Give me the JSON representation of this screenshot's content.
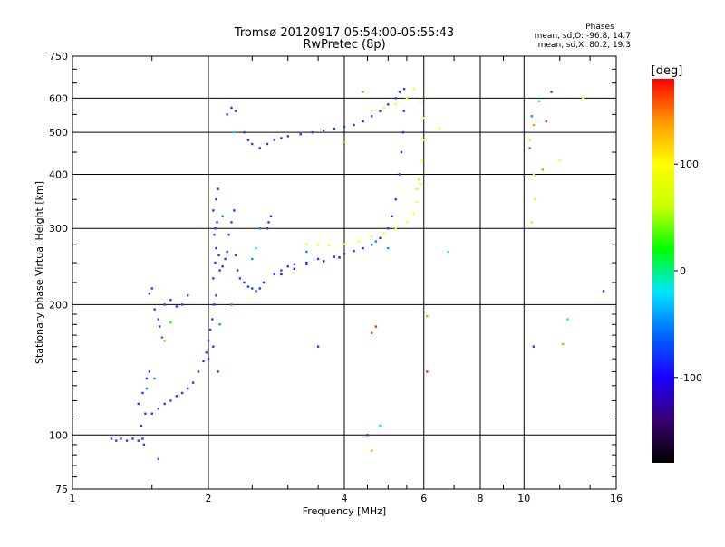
{
  "chart_data": {
    "type": "scatter",
    "title": "Tromsø 20120917 05:54:00-05:55:43",
    "subtitle": "RwPretec (8p)",
    "xlabel": "Frequency [MHz]",
    "ylabel": "Stationary phase Virtual Height [km]",
    "x_scale": "log",
    "y_scale": "log",
    "xlim": [
      1,
      16
    ],
    "ylim": [
      75,
      750
    ],
    "x_ticks": [
      1,
      2,
      4,
      6,
      8,
      10,
      16
    ],
    "y_ticks": [
      75,
      100,
      200,
      300,
      400,
      500,
      600,
      750
    ],
    "grid": true,
    "stats": {
      "heading": "Phases",
      "line_o": "mean, sd,O: -96.8, 14.7",
      "line_x": "mean, sd,X: 80.2, 19.3"
    },
    "colorbar": {
      "title": "[deg]",
      "ticks": [
        100,
        0,
        -100
      ],
      "range": [
        -180,
        180
      ],
      "colors": [
        "#000000",
        "#3a0070",
        "#1a00ff",
        "#0066ff",
        "#00e5ff",
        "#00ff00",
        "#c8ff00",
        "#ffff00",
        "#ff9900",
        "#ff0000"
      ]
    },
    "series": [
      {
        "color": "#1f3cff",
        "points": [
          [
            1.22,
            98
          ],
          [
            1.25,
            97
          ],
          [
            1.28,
            98
          ],
          [
            1.32,
            97
          ],
          [
            1.36,
            98
          ],
          [
            1.4,
            97
          ],
          [
            1.43,
            98
          ],
          [
            1.42,
            105
          ],
          [
            1.44,
            95
          ],
          [
            1.48,
            212
          ],
          [
            1.5,
            218
          ],
          [
            1.52,
            195
          ],
          [
            1.55,
            185
          ],
          [
            1.56,
            178
          ],
          [
            1.6,
            200
          ],
          [
            1.65,
            205
          ],
          [
            1.7,
            198
          ],
          [
            1.75,
            200
          ],
          [
            1.8,
            210
          ],
          [
            1.4,
            118
          ],
          [
            1.43,
            125
          ],
          [
            1.46,
            135
          ],
          [
            1.48,
            140
          ],
          [
            1.45,
            112
          ],
          [
            1.5,
            112
          ],
          [
            1.55,
            115
          ],
          [
            1.6,
            118
          ],
          [
            1.65,
            120
          ],
          [
            1.7,
            123
          ],
          [
            1.75,
            125
          ],
          [
            1.8,
            128
          ],
          [
            1.85,
            132
          ],
          [
            1.9,
            140
          ],
          [
            1.95,
            148
          ],
          [
            1.98,
            155
          ],
          [
            2.0,
            165
          ],
          [
            2.02,
            175
          ],
          [
            2.04,
            185
          ],
          [
            2.06,
            200
          ],
          [
            2.08,
            210
          ],
          [
            2.05,
            230
          ],
          [
            2.07,
            250
          ],
          [
            2.08,
            270
          ],
          [
            2.06,
            290
          ],
          [
            2.09,
            310
          ],
          [
            2.05,
            330
          ],
          [
            2.08,
            350
          ],
          [
            2.1,
            370
          ],
          [
            2.07,
            300
          ],
          [
            2.11,
            260
          ],
          [
            2.12,
            240
          ],
          [
            2.15,
            245
          ],
          [
            2.18,
            255
          ],
          [
            2.2,
            265
          ],
          [
            2.22,
            290
          ],
          [
            2.25,
            310
          ],
          [
            2.28,
            330
          ],
          [
            2.3,
            260
          ],
          [
            2.32,
            240
          ],
          [
            2.35,
            230
          ],
          [
            2.4,
            225
          ],
          [
            2.45,
            220
          ],
          [
            2.5,
            218
          ],
          [
            2.55,
            215
          ],
          [
            2.6,
            218
          ],
          [
            2.65,
            225
          ],
          [
            2.7,
            300
          ],
          [
            2.72,
            310
          ],
          [
            2.75,
            320
          ],
          [
            2.8,
            235
          ],
          [
            2.9,
            240
          ],
          [
            3.0,
            245
          ],
          [
            3.1,
            248
          ],
          [
            3.3,
            250
          ],
          [
            3.5,
            255
          ],
          [
            3.8,
            258
          ],
          [
            4.0,
            262
          ],
          [
            4.2,
            266
          ],
          [
            4.4,
            270
          ],
          [
            4.6,
            275
          ],
          [
            4.8,
            285
          ],
          [
            5.0,
            300
          ],
          [
            5.1,
            320
          ],
          [
            5.2,
            350
          ],
          [
            5.3,
            400
          ],
          [
            5.35,
            450
          ],
          [
            5.4,
            500
          ],
          [
            5.42,
            560
          ],
          [
            5.43,
            630
          ],
          [
            2.2,
            550
          ],
          [
            2.25,
            570
          ],
          [
            2.3,
            560
          ],
          [
            2.4,
            500
          ],
          [
            2.45,
            480
          ],
          [
            2.5,
            470
          ],
          [
            2.6,
            460
          ],
          [
            2.7,
            470
          ],
          [
            2.8,
            480
          ],
          [
            2.9,
            485
          ],
          [
            3.0,
            490
          ],
          [
            3.2,
            495
          ],
          [
            3.4,
            500
          ],
          [
            3.6,
            505
          ],
          [
            3.8,
            510
          ],
          [
            4.0,
            515
          ],
          [
            4.2,
            520
          ],
          [
            4.4,
            530
          ],
          [
            4.6,
            545
          ],
          [
            4.8,
            560
          ],
          [
            5.0,
            580
          ],
          [
            5.2,
            600
          ],
          [
            5.3,
            620
          ],
          [
            2.1,
            140
          ],
          [
            2.0,
            150
          ],
          [
            2.05,
            160
          ],
          [
            1.55,
            88
          ],
          [
            4.5,
            100
          ],
          [
            10.5,
            160
          ],
          [
            11.5,
            620
          ],
          [
            15,
            215
          ],
          [
            3.5,
            160
          ]
        ]
      },
      {
        "color": "#0a8cff",
        "points": [
          [
            1.58,
            168
          ],
          [
            1.52,
            135
          ],
          [
            1.46,
            128
          ],
          [
            2.12,
            180
          ],
          [
            2.25,
            200
          ],
          [
            2.6,
            300
          ],
          [
            3.3,
            265
          ],
          [
            4.7,
            280
          ],
          [
            5.0,
            270
          ],
          [
            10.3,
            460
          ],
          [
            10.4,
            545
          ],
          [
            2.5,
            255
          ],
          [
            2.15,
            320
          ]
        ]
      },
      {
        "color": "#00e5ff",
        "points": [
          [
            2.55,
            270
          ],
          [
            2.28,
            500
          ],
          [
            10.8,
            590
          ],
          [
            12.5,
            185
          ],
          [
            4.8,
            105
          ],
          [
            6.8,
            265
          ]
        ]
      },
      {
        "color": "#4a00d0",
        "points": [
          [
            2.9,
            235
          ],
          [
            3.1,
            242
          ],
          [
            3.3,
            248
          ],
          [
            3.6,
            252
          ],
          [
            3.9,
            257
          ]
        ]
      },
      {
        "color": "#00ff00",
        "points": [
          [
            1.65,
            182
          ]
        ]
      },
      {
        "color": "#ffff00",
        "points": [
          [
            3.3,
            276
          ],
          [
            3.5,
            275
          ],
          [
            3.7,
            274
          ],
          [
            4.0,
            276
          ],
          [
            4.3,
            280
          ],
          [
            4.6,
            287
          ],
          [
            4.9,
            292
          ],
          [
            5.2,
            300
          ],
          [
            5.5,
            310
          ],
          [
            5.7,
            325
          ],
          [
            5.8,
            345
          ],
          [
            5.9,
            380
          ],
          [
            5.95,
            430
          ],
          [
            6.0,
            480
          ],
          [
            6.0,
            540
          ],
          [
            5.9,
            590
          ],
          [
            5.7,
            630
          ],
          [
            5.5,
            600
          ],
          [
            5.2,
            580
          ],
          [
            4.9,
            570
          ],
          [
            4.6,
            560
          ],
          [
            6.5,
            510
          ],
          [
            13.5,
            600
          ],
          [
            12.0,
            430
          ]
        ]
      },
      {
        "color": "#c8ff00",
        "points": [
          [
            5.8,
            370
          ],
          [
            5.85,
            390
          ],
          [
            10.4,
            310
          ],
          [
            10.6,
            350
          ],
          [
            10.5,
            400
          ],
          [
            10.3,
            480
          ]
        ]
      },
      {
        "color": "#ff9900",
        "points": [
          [
            4.4,
            620
          ],
          [
            4.6,
            92
          ],
          [
            6.1,
            188
          ],
          [
            10.5,
            520
          ],
          [
            11.0,
            410
          ],
          [
            12.2,
            162
          ],
          [
            4.0,
            475
          ],
          [
            1.6,
            165
          ]
        ]
      },
      {
        "color": "#ff2a00",
        "points": [
          [
            4.6,
            172
          ],
          [
            6.1,
            140
          ],
          [
            11.2,
            530
          ],
          [
            4.7,
            178
          ]
        ]
      }
    ]
  }
}
